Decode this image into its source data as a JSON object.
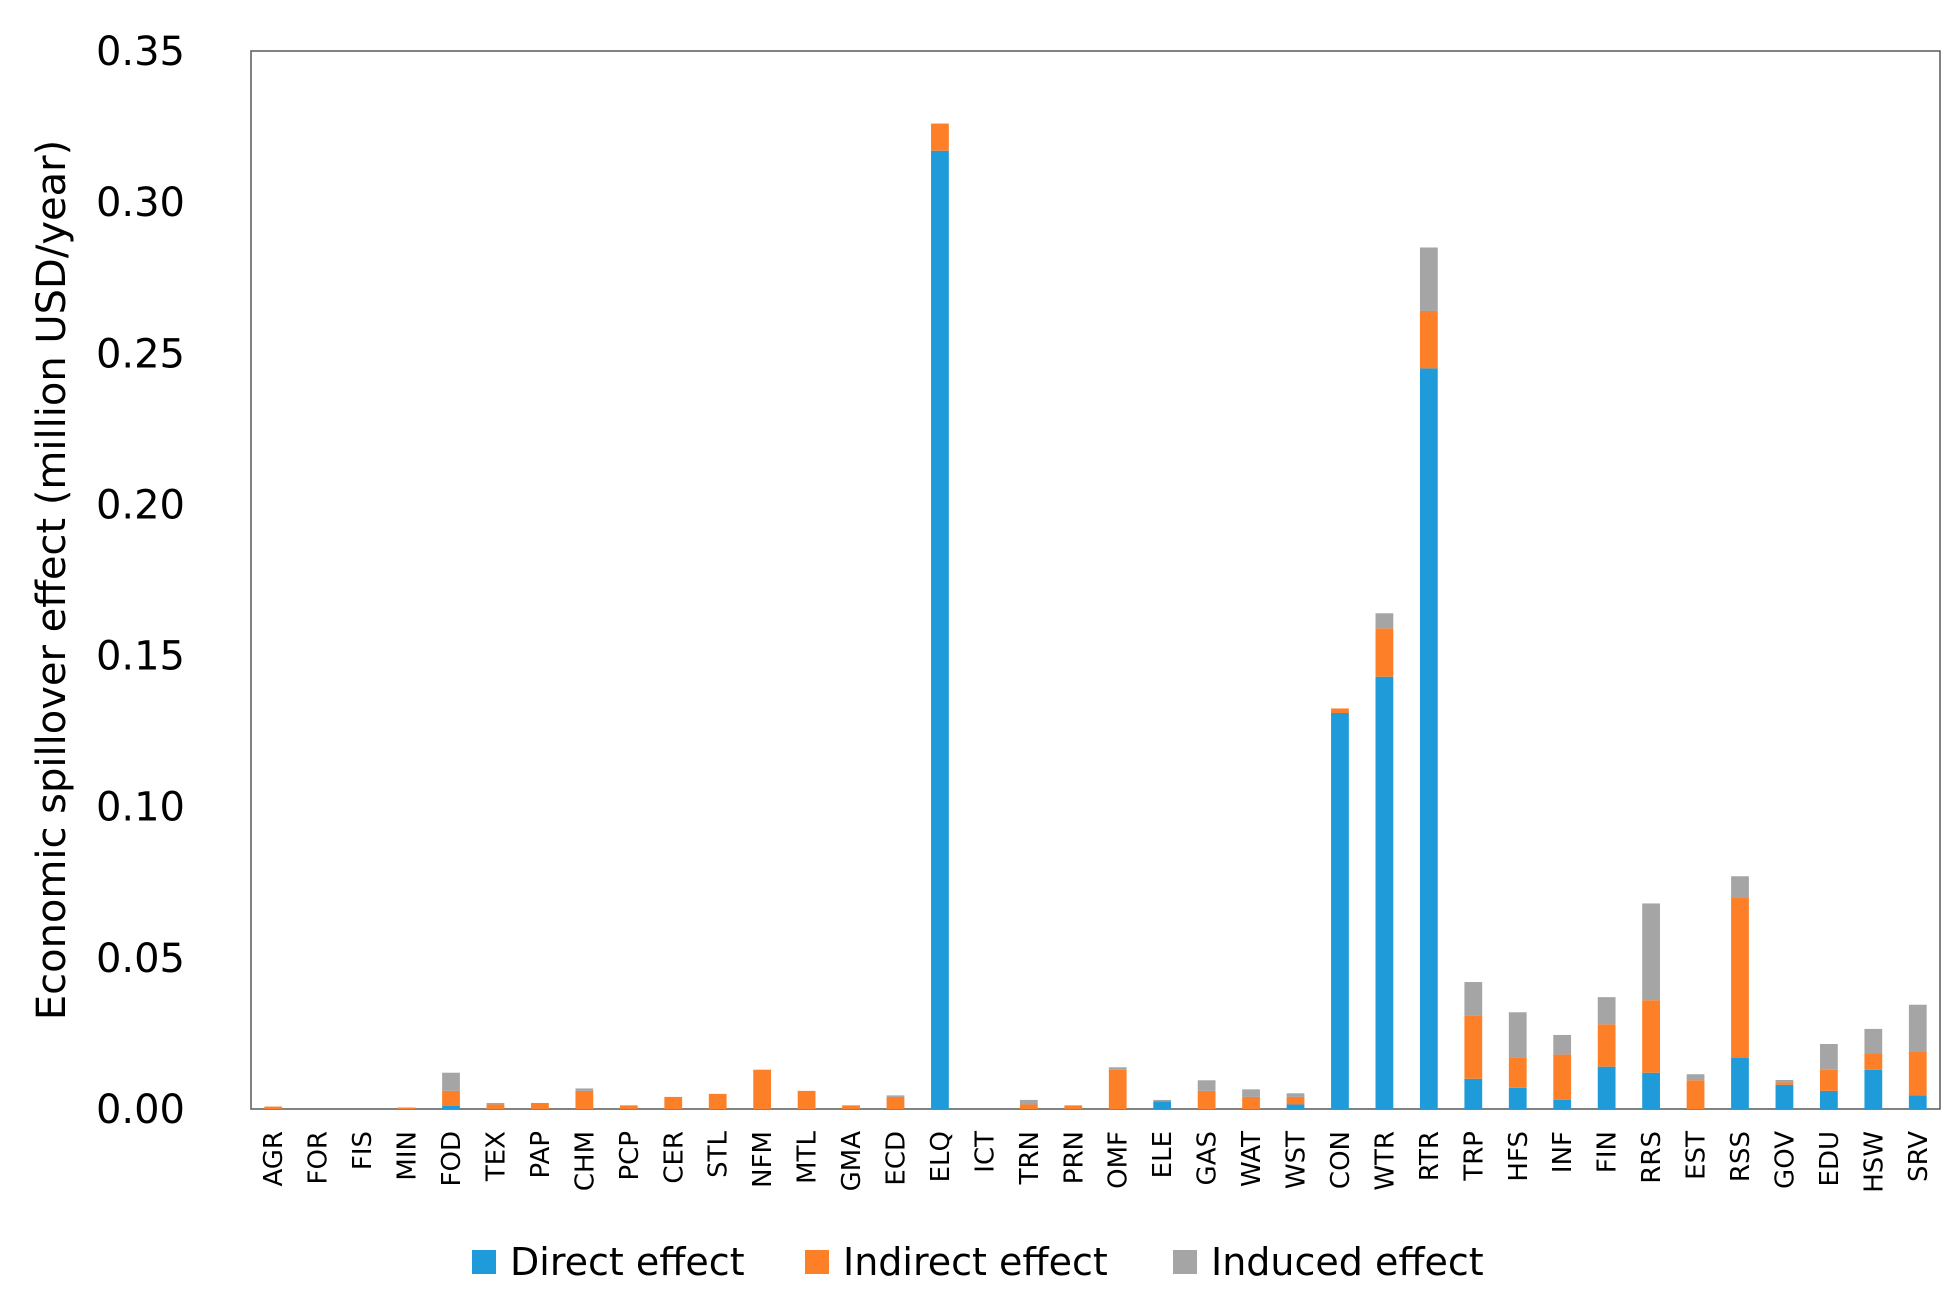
{
  "chart_data": {
    "type": "bar",
    "stacked": true,
    "ylabel": "Economic spillover effect (million USD/year)",
    "xlabel": "",
    "ylim": [
      0,
      0.35
    ],
    "yticks": [
      "0.00",
      "0.05",
      "0.10",
      "0.15",
      "0.20",
      "0.25",
      "0.30",
      "0.35"
    ],
    "ytick_values": [
      0,
      0.05,
      0.1,
      0.15,
      0.2,
      0.25,
      0.3,
      0.35
    ],
    "grid": false,
    "legend_position": "bottom",
    "categories": [
      "AGR",
      "FOR",
      "FIS",
      "MIN",
      "FOD",
      "TEX",
      "PAP",
      "CHM",
      "PCP",
      "CER",
      "STL",
      "NFM",
      "MTL",
      "GMA",
      "ECD",
      "ELQ",
      "ICT",
      "TRN",
      "PRN",
      "OMF",
      "ELE",
      "GAS",
      "WAT",
      "WST",
      "CON",
      "WTR",
      "RTR",
      "TRP",
      "HFS",
      "INF",
      "FIN",
      "RRS",
      "EST",
      "RSS",
      "GOV",
      "EDU",
      "HSW",
      "SRV"
    ],
    "series": [
      {
        "name": "Direct effect",
        "color": "#1f9bd9",
        "values": [
          0,
          0,
          0,
          0,
          0.001,
          0,
          0,
          0,
          0,
          0,
          0,
          0,
          0,
          0,
          0,
          0.317,
          0,
          0,
          0,
          0,
          0.0025,
          0,
          0,
          0.0015,
          0.131,
          0.143,
          0.245,
          0.01,
          0.007,
          0.003,
          0.014,
          0.012,
          0,
          0.017,
          0.008,
          0.006,
          0.013,
          0.0045
        ]
      },
      {
        "name": "Indirect effect",
        "color": "#fd7f28",
        "values": [
          0.0008,
          0,
          0,
          0.0005,
          0.005,
          0.0015,
          0.002,
          0.006,
          0.0012,
          0.004,
          0.005,
          0.013,
          0.006,
          0.0012,
          0.004,
          0.009,
          0,
          0.0015,
          0.0012,
          0.013,
          0,
          0.006,
          0.004,
          0.0025,
          0.0015,
          0.016,
          0.019,
          0.021,
          0.01,
          0.015,
          0.014,
          0.024,
          0.0095,
          0.053,
          0.0008,
          0.007,
          0.0055,
          0.0145
        ]
      },
      {
        "name": "Induced effect",
        "color": "#a5a5a5",
        "values": [
          0,
          0,
          0,
          0,
          0.006,
          0.0005,
          0,
          0.0008,
          0,
          0,
          0,
          0,
          0,
          0,
          0.0005,
          0,
          0,
          0.0015,
          0,
          0.0008,
          0.0005,
          0.0035,
          0.0025,
          0.0012,
          0,
          0.005,
          0.021,
          0.011,
          0.015,
          0.0065,
          0.009,
          0.032,
          0.002,
          0.007,
          0.0008,
          0.0085,
          0.008,
          0.0155
        ]
      }
    ]
  }
}
